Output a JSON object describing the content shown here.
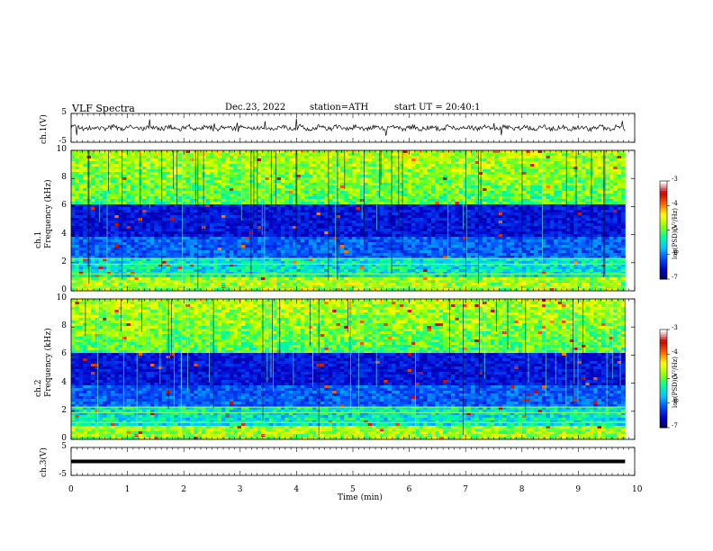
{
  "header": {
    "title": "VLF Spectra",
    "date": "Dec.23, 2022",
    "station": "station=ATH",
    "start": "start UT = 20:40:1"
  },
  "chart_data": [
    {
      "type": "line",
      "name": "ch1-waveform",
      "ylabel": "ch.1(V)",
      "yticks": [
        "5",
        "-5"
      ],
      "ylim": [
        -5,
        5
      ],
      "mean_value": 0,
      "x_range": [
        0,
        9.83
      ]
    },
    {
      "type": "heatmap",
      "name": "ch1-spectrogram",
      "ylabel": "ch.1 Frequency (kHz)",
      "yticks": [
        "0",
        "2",
        "4",
        "6",
        "8",
        "10"
      ],
      "ylim": [
        0,
        10
      ],
      "x_range": [
        0,
        9.83
      ],
      "colorbar": {
        "label": "log(PSD)(V²/Hz)",
        "ticks": [
          "-3",
          "-4",
          "-5",
          "-6",
          "-7"
        ],
        "range": [
          -7,
          -3
        ]
      }
    },
    {
      "type": "heatmap",
      "name": "ch2-spectrogram",
      "ylabel": "ch.2 Frequency (kHz)",
      "yticks": [
        "0",
        "2",
        "4",
        "6",
        "8",
        "10"
      ],
      "ylim": [
        0,
        10
      ],
      "x_range": [
        0,
        9.83
      ],
      "colorbar": {
        "label": "log(PSD)(V²/Hz)",
        "ticks": [
          "-3",
          "-4",
          "-5",
          "-6",
          "-7"
        ],
        "range": [
          -7,
          -3
        ]
      }
    },
    {
      "type": "line",
      "name": "ch3-waveform",
      "ylabel": "ch.3(V)",
      "yticks": [
        "5",
        "-5"
      ],
      "ylim": [
        -5,
        5
      ],
      "mean_value": 0,
      "x_range": [
        0,
        9.83
      ]
    }
  ],
  "xaxis": {
    "label": "Time (min)",
    "ticks": [
      "0",
      "1",
      "2",
      "3",
      "4",
      "5",
      "6",
      "7",
      "8",
      "9",
      "10"
    ],
    "xlim": [
      0,
      10
    ]
  },
  "colors": {
    "colormap": [
      "#000050",
      "#0000c8",
      "#0050ff",
      "#00c8ff",
      "#00ff96",
      "#96ff00",
      "#ffff00",
      "#ff6400",
      "#c80000",
      "#ffffff"
    ]
  }
}
